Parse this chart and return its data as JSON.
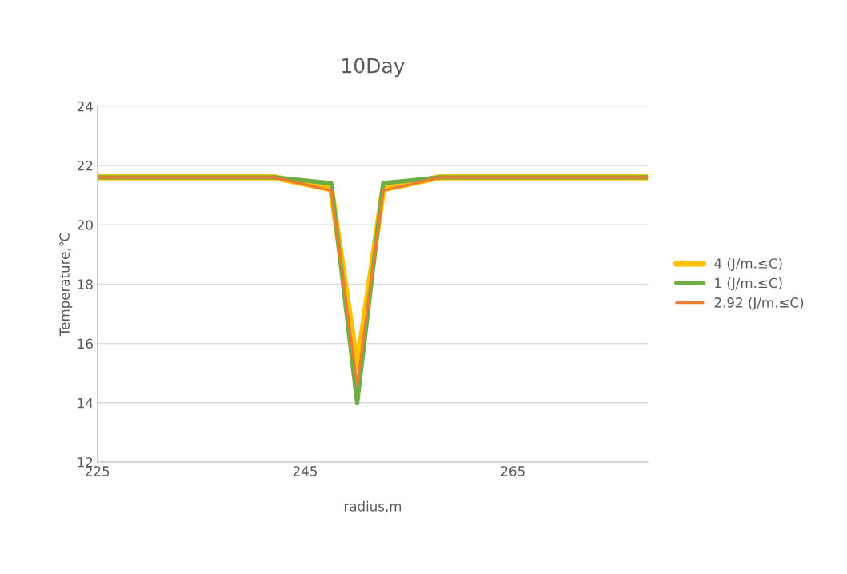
{
  "chart_data": {
    "type": "line",
    "title": "10Day",
    "xlabel": "radius,m",
    "ylabel": "Temperature,℃",
    "x": [
      225,
      242,
      247.5,
      250,
      252.5,
      258,
      278
    ],
    "series": [
      {
        "name": "4 (J/m.≤C)",
        "color": "#ffc000",
        "values": [
          21.6,
          21.6,
          21.2,
          15.2,
          21.2,
          21.6,
          21.6
        ]
      },
      {
        "name": "1 (J/m.≤C)",
        "color": "#70ad47",
        "values": [
          21.6,
          21.6,
          21.4,
          14.0,
          21.4,
          21.6,
          21.6
        ]
      },
      {
        "name": "2.92 (J/m.≤C)",
        "color": "#ed7d31",
        "values": [
          21.6,
          21.6,
          21.15,
          14.6,
          21.15,
          21.6,
          21.6
        ]
      }
    ],
    "xlim": [
      225,
      278
    ],
    "xticks": [
      225,
      245,
      265
    ],
    "ylim": [
      12,
      24
    ],
    "yticks": [
      12,
      14,
      16,
      18,
      20,
      22,
      24
    ],
    "grid": "y",
    "legend": "right",
    "marker": "none",
    "line_style": "solid"
  }
}
